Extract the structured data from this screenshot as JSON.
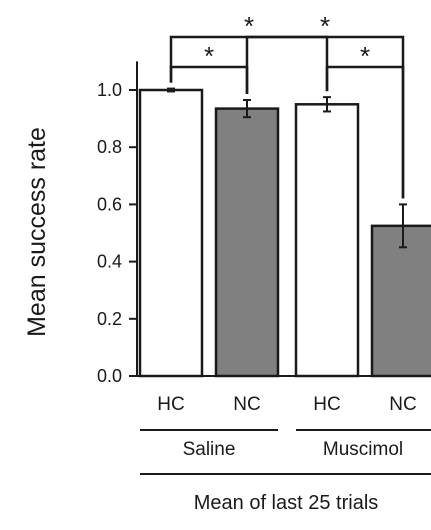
{
  "chart_data": {
    "type": "bar",
    "ylabel": "Mean success rate",
    "ylim": [
      0.0,
      1.1
    ],
    "yticks": [
      0.0,
      0.2,
      0.4,
      0.6,
      0.8,
      1.0
    ],
    "ytick_labels": [
      "0.0",
      "0.2",
      "0.4",
      "0.6",
      "0.8",
      "1.0"
    ],
    "categories": [
      "HC",
      "NC",
      "HC",
      "NC"
    ],
    "groups": [
      "Saline",
      "Muscimol"
    ],
    "footer": "Mean of last 25 trials",
    "bars": [
      {
        "category": "HC",
        "group": "Saline",
        "value": 1.0,
        "error": 0.005,
        "color": "#ffffff"
      },
      {
        "category": "NC",
        "group": "Saline",
        "value": 0.935,
        "error": 0.03,
        "color": "#808080"
      },
      {
        "category": "HC",
        "group": "Muscimol",
        "value": 0.95,
        "error": 0.025,
        "color": "#ffffff"
      },
      {
        "category": "NC",
        "group": "Muscimol",
        "value": 0.525,
        "error": 0.075,
        "color": "#808080"
      }
    ],
    "significance": [
      {
        "from": 0,
        "to": 1,
        "label": "*"
      },
      {
        "from": 2,
        "to": 3,
        "label": "*"
      },
      {
        "from": 0,
        "to": 2,
        "label": "*"
      },
      {
        "from": 1,
        "to": 3,
        "label": "*"
      }
    ]
  }
}
